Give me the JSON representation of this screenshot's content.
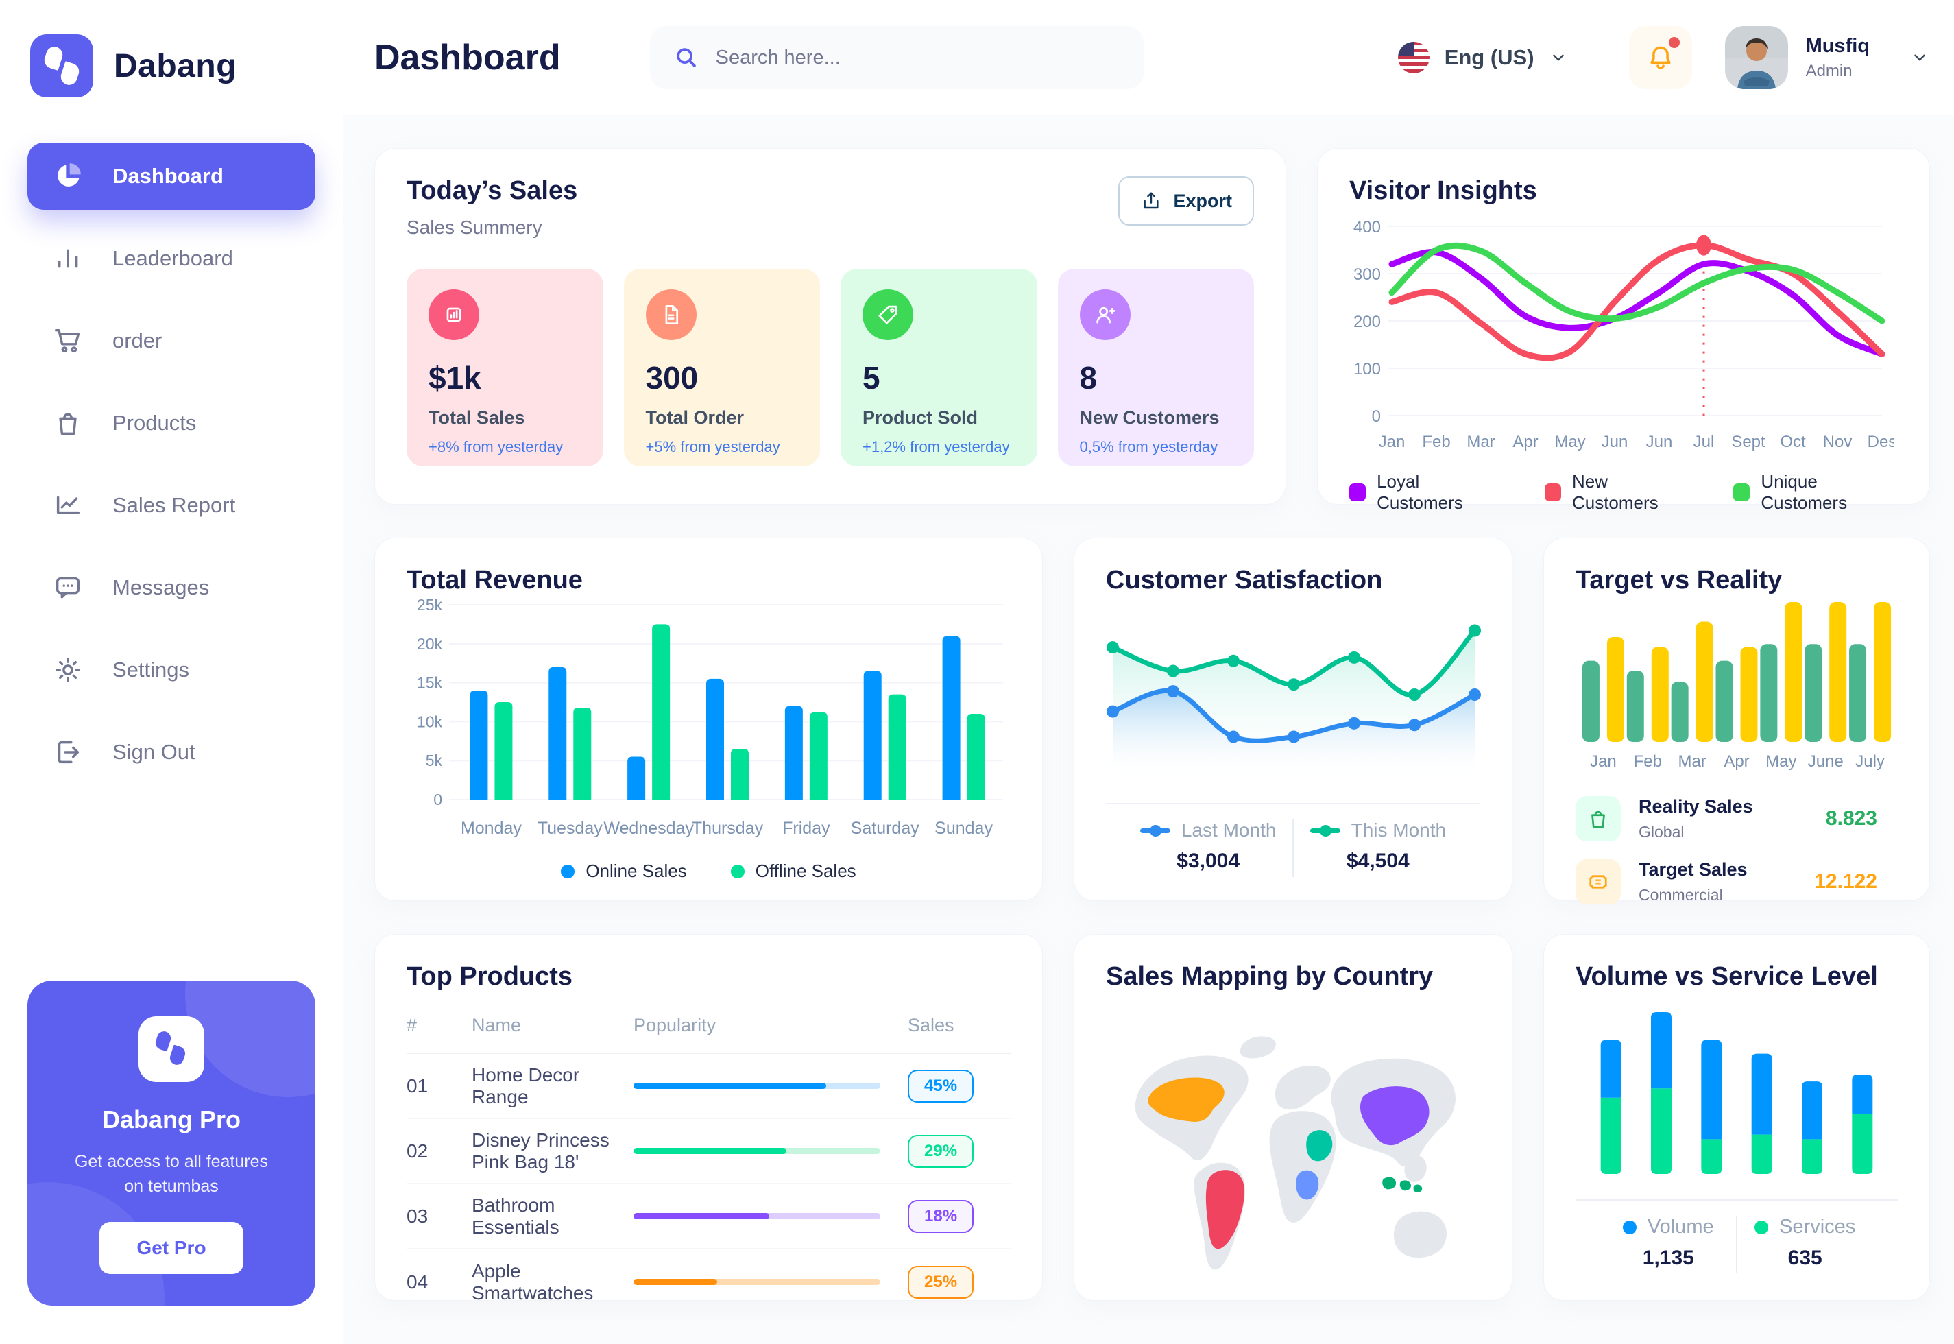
{
  "sidebar": {
    "brand": "Dabang",
    "items": [
      {
        "label": "Dashboard",
        "active": true
      },
      {
        "label": "Leaderboard"
      },
      {
        "label": "order"
      },
      {
        "label": "Products"
      },
      {
        "label": "Sales Report"
      },
      {
        "label": "Messages"
      },
      {
        "label": "Settings"
      },
      {
        "label": "Sign Out"
      }
    ],
    "pro": {
      "title": "Dabang Pro",
      "desc": "Get access to all features on tetumbas",
      "button": "Get Pro"
    }
  },
  "header": {
    "title": "Dashboard",
    "search_placeholder": "Search here...",
    "lang": "Eng (US)",
    "user_name": "Musfiq",
    "user_role": "Admin"
  },
  "today_sales": {
    "title": "Today’s Sales",
    "subtitle": "Sales Summery",
    "export_label": "Export",
    "stats": [
      {
        "value": "$1k",
        "label": "Total Sales",
        "delta": "+8% from yesterday",
        "bg": "#FFE2E5",
        "icon_bg": "#FA5A7D"
      },
      {
        "value": "300",
        "label": "Total Order",
        "delta": "+5% from yesterday",
        "bg": "#FFF4DE",
        "icon_bg": "#FF947A"
      },
      {
        "value": "5",
        "label": "Product Sold",
        "delta": "+1,2% from yesterday",
        "bg": "#DCFCE7",
        "icon_bg": "#3CD856"
      },
      {
        "value": "8",
        "label": "New Customers",
        "delta": "0,5% from yesterday",
        "bg": "#F3E8FF",
        "icon_bg": "#BF83FF"
      }
    ]
  },
  "top_products": {
    "title": "Top Products",
    "headers": {
      "num": "#",
      "name": "Name",
      "popularity": "Popularity",
      "sales": "Sales"
    },
    "rows": [
      {
        "num": "01",
        "name": "Home Decor Range",
        "popularity": 78,
        "sales": "45%",
        "color": "#0095FF",
        "track": "#CDE7FF",
        "badge_bg": "#F0F9FF"
      },
      {
        "num": "02",
        "name": "Disney Princess Pink Bag 18'",
        "popularity": 62,
        "sales": "29%",
        "color": "#00E096",
        "track": "#C6F5DE",
        "badge_bg": "#F0FDF6"
      },
      {
        "num": "03",
        "name": "Bathroom Essentials",
        "popularity": 55,
        "sales": "18%",
        "color": "#884DFF",
        "track": "#DCCFFF",
        "badge_bg": "#F8F4FF"
      },
      {
        "num": "04",
        "name": "Apple Smartwatches",
        "popularity": 34,
        "sales": "25%",
        "color": "#FF8F0D",
        "track": "#FFD9B0",
        "badge_bg": "#FFF6EA"
      }
    ]
  },
  "sales_map": {
    "title": "Sales Mapping by Country",
    "countries": [
      {
        "key": "usa",
        "name": "United States",
        "color": "#FFA412"
      },
      {
        "key": "brazil",
        "name": "Brazil",
        "color": "#F0435F"
      },
      {
        "key": "saudi",
        "name": "Saudi Arabia",
        "color": "#00C5A2"
      },
      {
        "key": "congo",
        "name": "DR Congo",
        "color": "#6993FF"
      },
      {
        "key": "china",
        "name": "China",
        "color": "#8950FC"
      },
      {
        "key": "indonesia",
        "name": "Indonesia",
        "color": "#00B074"
      }
    ]
  },
  "chart_data": [
    {
      "id": "visitor_insights",
      "type": "line",
      "title": "Visitor Insights",
      "x": [
        "Jan",
        "Feb",
        "Mar",
        "Apr",
        "May",
        "Jun",
        "Jun",
        "Jul",
        "Sept",
        "Oct",
        "Nov",
        "Des"
      ],
      "ylim": [
        0,
        400
      ],
      "yticks": [
        0,
        100,
        200,
        300,
        400
      ],
      "grid": true,
      "legend_position": "bottom",
      "series": [
        {
          "name": "Loyal Customers",
          "color": "#A700FF",
          "values": [
            320,
            345,
            290,
            210,
            185,
            205,
            260,
            320,
            305,
            255,
            170,
            130
          ]
        },
        {
          "name": "New Customers",
          "color": "#F64E60",
          "values": [
            240,
            260,
            195,
            130,
            135,
            240,
            330,
            360,
            330,
            300,
            220,
            130
          ]
        },
        {
          "name": "Unique Customers",
          "color": "#3CD856",
          "values": [
            260,
            350,
            348,
            280,
            220,
            205,
            230,
            280,
            310,
            308,
            260,
            200
          ]
        }
      ],
      "annotation": {
        "type": "dashed-vertical-with-marker",
        "x_index": 7,
        "series": "New Customers",
        "value": 360,
        "color": "#F64E60"
      }
    },
    {
      "id": "total_revenue",
      "type": "bar",
      "title": "Total Revenue",
      "categories": [
        "Monday",
        "Tuesday",
        "Wednesday",
        "Thursday",
        "Friday",
        "Saturday",
        "Sunday"
      ],
      "ylim": [
        0,
        25000
      ],
      "yticks": [
        0,
        5000,
        10000,
        15000,
        20000,
        25000
      ],
      "ytick_labels": [
        "0",
        "5k",
        "10k",
        "15k",
        "20k",
        "25k"
      ],
      "grid": true,
      "legend_position": "bottom",
      "series": [
        {
          "name": "Online Sales",
          "color": "#0095FF",
          "values": [
            14000,
            17000,
            5500,
            15500,
            12000,
            16500,
            21000
          ]
        },
        {
          "name": "Offline Sales",
          "color": "#00E096",
          "values": [
            12500,
            11800,
            22500,
            6500,
            11200,
            13500,
            11000
          ]
        }
      ]
    },
    {
      "id": "customer_satisfaction",
      "type": "area",
      "title": "Customer Satisfaction",
      "x": [
        1,
        2,
        3,
        4,
        5,
        6,
        7
      ],
      "ylim": [
        0,
        100
      ],
      "grid": false,
      "legend_position": "bottom",
      "series": [
        {
          "name": "This Month",
          "color": "#00C292",
          "fill": "rgba(0,194,146,0.22)",
          "total": "$4,504",
          "values": [
            78,
            64,
            70,
            56,
            72,
            50,
            88
          ]
        },
        {
          "name": "Last Month",
          "color": "#2E8BF0",
          "fill": "rgba(46,139,240,0.30)",
          "total": "$3,004",
          "values": [
            40,
            52,
            25,
            25,
            33,
            32,
            50
          ]
        }
      ]
    },
    {
      "id": "target_vs_reality",
      "type": "bar",
      "title": "Target vs Reality",
      "categories": [
        "Jan",
        "Feb",
        "Mar",
        "Apr",
        "May",
        "June",
        "July"
      ],
      "ylim": [
        0,
        100
      ],
      "grid": false,
      "series": [
        {
          "name": "Reality Sales",
          "color": "#4AB58E",
          "values": [
            58,
            51,
            43,
            58,
            70,
            70,
            70
          ]
        },
        {
          "name": "Target Sales",
          "color": "#FFCF00",
          "values": [
            75,
            68,
            86,
            68,
            100,
            100,
            100
          ]
        }
      ],
      "legend": [
        {
          "title": "Reality Sales",
          "subtitle": "Global",
          "value": "8.823",
          "value_color": "#27AE60",
          "tile_bg": "#E2FFF1",
          "icon_color": "#27AE60"
        },
        {
          "title": "Target Sales",
          "subtitle": "Commercial",
          "value": "12.122",
          "value_color": "#FFA412",
          "tile_bg": "#FFF4DE",
          "icon_color": "#FFA412"
        }
      ]
    },
    {
      "id": "volume_vs_service",
      "type": "stacked-bar",
      "title": "Volume vs Service Level",
      "categories": [
        "1",
        "2",
        "3",
        "4",
        "5",
        "6"
      ],
      "grid": false,
      "legend_position": "bottom",
      "series": [
        {
          "name": "Volume",
          "color": "#0095FF",
          "total": "1,135",
          "values": [
            25,
            33,
            43,
            35,
            25,
            17
          ]
        },
        {
          "name": "Services",
          "color": "#00E096",
          "total": "635",
          "values": [
            33,
            37,
            15,
            17,
            15,
            26
          ]
        }
      ]
    }
  ]
}
